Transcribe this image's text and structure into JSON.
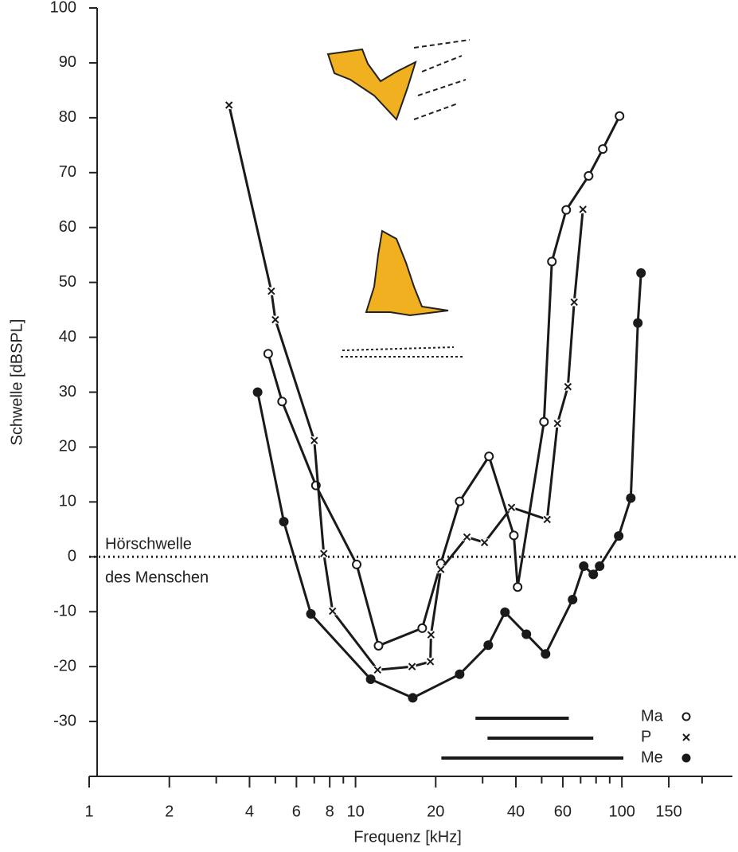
{
  "chart_data": {
    "type": "line",
    "x_label": "Frequenz [kHz]",
    "y_label": "Schwelle [dBSPL]",
    "annotation": [
      "Hörschwelle",
      "des Menschen"
    ],
    "reference_line": 0,
    "log_x": true,
    "xlim": [
      1,
      260
    ],
    "ylim": [
      -40,
      100
    ],
    "xticks": [
      1,
      2,
      4,
      6,
      8,
      10,
      20,
      40,
      60,
      100,
      150
    ],
    "xminorticks": [
      3,
      5,
      7,
      9,
      30,
      50,
      70,
      80,
      90,
      200
    ],
    "yticks": [
      -30,
      -20,
      -10,
      0,
      10,
      20,
      30,
      40,
      50,
      60,
      70,
      80,
      90,
      100
    ],
    "series": [
      {
        "name": "Ma",
        "marker": "open-circle",
        "color": "#1a1a1a",
        "x": [
          4.7,
          5.3,
          7.1,
          10.1,
          12.2,
          17.8,
          20.9,
          24.6,
          31.7,
          39.3,
          40.6,
          51,
          54.6,
          61.8,
          75,
          84.8,
          98
        ],
        "values": [
          37,
          28.3,
          13,
          -1.4,
          -16.2,
          -13,
          -1.2,
          10.1,
          18.3,
          3.9,
          -5.5,
          24.6,
          53.8,
          63.2,
          69.4,
          74.3,
          80.3
        ],
        "range": [
          28.2,
          63.2
        ]
      },
      {
        "name": "P",
        "marker": "cross",
        "color": "#1a1a1a",
        "x": [
          3.35,
          4.83,
          5,
          7,
          7.6,
          8.2,
          12.1,
          16.3,
          19.1,
          19.2,
          20.9,
          26.2,
          30.5,
          38.5,
          52.4,
          57.3,
          62.7,
          66.2,
          71.4
        ],
        "values": [
          82.3,
          48.4,
          43.2,
          21.2,
          0.6,
          -9.9,
          -20.6,
          -20,
          -19.1,
          -14.2,
          -2.3,
          3.6,
          2.6,
          9,
          6.8,
          24.3,
          31,
          46.4,
          63.3
        ],
        "range": [
          31.3,
          78.1
        ]
      },
      {
        "name": "Me",
        "marker": "filled-circle",
        "color": "#1a1a1a",
        "x": [
          4.29,
          5.38,
          6.8,
          11.4,
          16.4,
          24.6,
          31.5,
          36.4,
          43.8,
          51.7,
          65.3,
          71.9,
          78.1,
          82.5,
          97.3,
          108,
          114.8,
          118
        ],
        "values": [
          30,
          6.4,
          -10.4,
          -22.3,
          -25.7,
          -21.4,
          -16.1,
          -10.1,
          -14.1,
          -17.7,
          -7.8,
          -1.7,
          -3.2,
          -1.7,
          3.8,
          10.7,
          42.6,
          51.7
        ],
        "range": [
          21,
          101.3
        ]
      }
    ]
  }
}
